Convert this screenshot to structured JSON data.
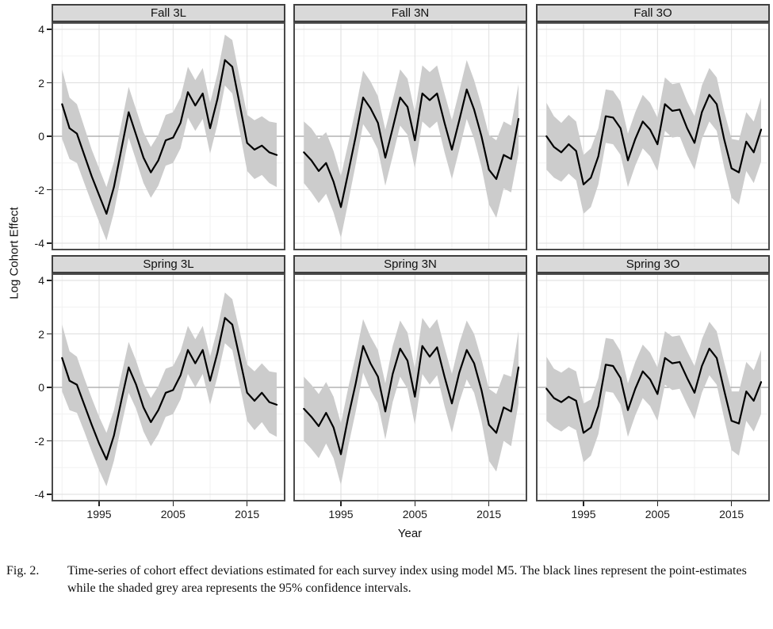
{
  "figure": {
    "caption_label": "Fig. 2.",
    "caption_text": "Time-series of cohort effect deviations estimated for each survey index using model M5. The black lines represent the point-estimates while the shaded grey area represents the 95% confidence intervals."
  },
  "chart_data": {
    "type": "line",
    "facet_grid": {
      "rows": 2,
      "cols": 3,
      "row_labels": [
        "Fall",
        "Spring"
      ],
      "col_labels": [
        "3L",
        "3N",
        "3O"
      ]
    },
    "title": "",
    "xlabel": "Year",
    "ylabel": "Log Cohort Effect",
    "xlim": [
      1988.6,
      2020.2
    ],
    "ylim": [
      -4.27,
      4.27
    ],
    "x_ticks": [
      1995,
      2005,
      2015
    ],
    "y_ticks": [
      4,
      2,
      0,
      -2,
      -4
    ],
    "grid": {
      "major_x": [
        1995,
        2005,
        2015
      ],
      "minor_x": [
        1990,
        2000,
        2010,
        2020
      ],
      "major_y": [
        -4,
        -2,
        0,
        2,
        4
      ],
      "minor_y": [
        -3,
        -1,
        1,
        3
      ],
      "zero_reference_line": 0
    },
    "legend": "none",
    "band_meaning": "95% confidence interval",
    "line_meaning": "point estimate",
    "years": [
      1990,
      1991,
      1992,
      1993,
      1994,
      1995,
      1996,
      1997,
      1998,
      1999,
      2000,
      2001,
      2002,
      2003,
      2004,
      2005,
      2006,
      2007,
      2008,
      2009,
      2010,
      2011,
      2012,
      2013,
      2014,
      2015,
      2016,
      2017,
      2018,
      2019
    ],
    "facets": [
      {
        "title": "Fall 3L",
        "values": [
          1.2,
          0.3,
          0.1,
          -0.7,
          -1.5,
          -2.2,
          -2.9,
          -1.9,
          -0.5,
          0.9,
          0.05,
          -0.8,
          -1.35,
          -0.9,
          -0.15,
          -0.05,
          0.5,
          1.65,
          1.15,
          1.6,
          0.3,
          1.4,
          2.85,
          2.6,
          1.2,
          -0.25,
          -0.5,
          -0.35,
          -0.6,
          -0.7
        ],
        "ci_halfwidth": [
          1.3,
          1.15,
          1.1,
          1.05,
          1.0,
          1.0,
          1.0,
          0.95,
          0.95,
          0.95,
          0.95,
          0.95,
          0.95,
          0.95,
          0.95,
          0.95,
          0.95,
          0.95,
          0.95,
          0.95,
          0.95,
          0.95,
          0.95,
          1.0,
          1.0,
          1.05,
          1.1,
          1.1,
          1.15,
          1.2
        ]
      },
      {
        "title": "Fall 3N",
        "values": [
          -0.6,
          -0.9,
          -1.3,
          -1.0,
          -1.7,
          -2.65,
          -1.35,
          0.0,
          1.45,
          1.05,
          0.5,
          -0.8,
          0.3,
          1.45,
          1.1,
          -0.15,
          1.6,
          1.35,
          1.6,
          0.5,
          -0.5,
          0.6,
          1.75,
          1.0,
          0.0,
          -1.25,
          -1.6,
          -0.7,
          -0.85,
          0.65
        ],
        "ci_halfwidth": [
          1.15,
          1.2,
          1.2,
          1.15,
          1.15,
          1.15,
          1.1,
          1.05,
          1.0,
          1.0,
          1.0,
          1.05,
          1.05,
          1.05,
          1.05,
          1.05,
          1.05,
          1.05,
          1.05,
          1.1,
          1.1,
          1.1,
          1.1,
          1.1,
          1.15,
          1.3,
          1.45,
          1.25,
          1.25,
          1.3
        ]
      },
      {
        "title": "Fall 3O",
        "values": [
          0.0,
          -0.4,
          -0.6,
          -0.3,
          -0.55,
          -1.8,
          -1.55,
          -0.75,
          0.75,
          0.7,
          0.3,
          -0.9,
          -0.1,
          0.55,
          0.25,
          -0.3,
          1.2,
          0.95,
          1.0,
          0.3,
          -0.25,
          0.9,
          1.55,
          1.2,
          -0.1,
          -1.2,
          -1.35,
          -0.2,
          -0.6,
          0.25
        ],
        "ci_halfwidth": [
          1.25,
          1.15,
          1.1,
          1.1,
          1.1,
          1.1,
          1.1,
          1.05,
          1.0,
          1.0,
          1.0,
          1.0,
          1.0,
          1.0,
          1.0,
          1.0,
          1.0,
          1.0,
          1.0,
          1.0,
          1.0,
          1.0,
          1.0,
          1.0,
          1.05,
          1.1,
          1.2,
          1.1,
          1.15,
          1.2
        ]
      },
      {
        "title": "Spring 3L",
        "values": [
          1.1,
          0.25,
          0.1,
          -0.65,
          -1.4,
          -2.1,
          -2.7,
          -1.8,
          -0.5,
          0.75,
          0.1,
          -0.75,
          -1.3,
          -0.85,
          -0.2,
          -0.1,
          0.45,
          1.4,
          0.9,
          1.4,
          0.25,
          1.3,
          2.6,
          2.35,
          1.1,
          -0.2,
          -0.5,
          -0.2,
          -0.55,
          -0.65
        ],
        "ci_halfwidth": [
          1.25,
          1.1,
          1.05,
          1.0,
          1.0,
          1.0,
          1.0,
          0.95,
          0.95,
          0.95,
          0.9,
          0.9,
          0.9,
          0.9,
          0.9,
          0.9,
          0.9,
          0.9,
          0.9,
          0.9,
          0.9,
          0.9,
          0.95,
          0.95,
          1.0,
          1.05,
          1.1,
          1.1,
          1.15,
          1.2
        ]
      },
      {
        "title": "Spring 3N",
        "values": [
          -0.8,
          -1.1,
          -1.45,
          -0.95,
          -1.5,
          -2.5,
          -1.1,
          0.15,
          1.55,
          0.9,
          0.4,
          -0.9,
          0.5,
          1.45,
          1.0,
          -0.35,
          1.55,
          1.15,
          1.5,
          0.4,
          -0.6,
          0.55,
          1.4,
          0.9,
          -0.1,
          -1.4,
          -1.7,
          -0.75,
          -0.9,
          0.75
        ],
        "ci_halfwidth": [
          1.2,
          1.2,
          1.2,
          1.15,
          1.15,
          1.15,
          1.1,
          1.05,
          1.0,
          1.0,
          1.0,
          1.05,
          1.05,
          1.05,
          1.05,
          1.05,
          1.05,
          1.05,
          1.05,
          1.1,
          1.1,
          1.1,
          1.1,
          1.1,
          1.15,
          1.35,
          1.45,
          1.25,
          1.3,
          1.35
        ]
      },
      {
        "title": "Spring 3O",
        "values": [
          -0.05,
          -0.4,
          -0.55,
          -0.35,
          -0.5,
          -1.7,
          -1.5,
          -0.7,
          0.85,
          0.8,
          0.35,
          -0.85,
          -0.05,
          0.6,
          0.3,
          -0.25,
          1.1,
          0.9,
          0.95,
          0.35,
          -0.2,
          0.8,
          1.45,
          1.1,
          -0.1,
          -1.25,
          -1.35,
          -0.15,
          -0.5,
          0.2
        ],
        "ci_halfwidth": [
          1.2,
          1.1,
          1.1,
          1.1,
          1.1,
          1.1,
          1.05,
          1.05,
          1.0,
          1.0,
          1.0,
          1.0,
          1.0,
          1.0,
          1.0,
          1.0,
          1.0,
          1.0,
          1.0,
          1.0,
          1.0,
          1.0,
          1.0,
          1.0,
          1.05,
          1.1,
          1.2,
          1.1,
          1.15,
          1.2
        ]
      }
    ]
  },
  "colors": {
    "background": "#ffffff",
    "strip_fill": "#d9d9d9",
    "strip_border": "#3f3f3f",
    "panel_border": "#4a4a4a",
    "grid_major": "#dedede",
    "grid_minor": "#f1f1f1",
    "zero_line": "#a3a3a3",
    "band": "#cccccc",
    "line": "#000000",
    "text": "#111111"
  }
}
